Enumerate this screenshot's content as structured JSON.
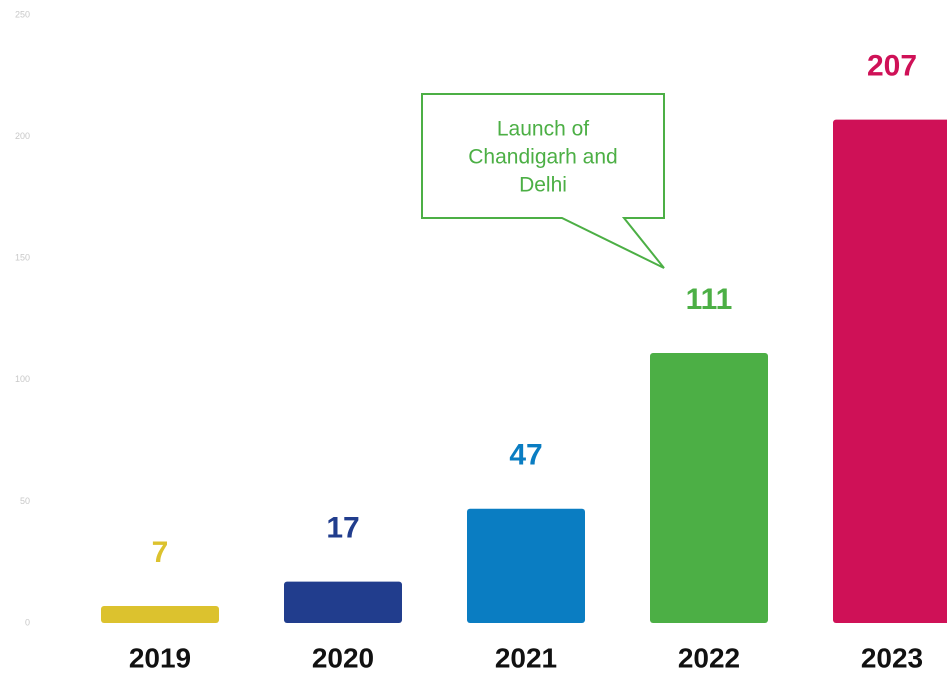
{
  "chart_data": {
    "type": "bar",
    "categories": [
      "2019",
      "2020",
      "2021",
      "2022",
      "2023"
    ],
    "values": [
      7,
      17,
      47,
      111,
      207
    ],
    "colors": [
      "#dcc22e",
      "#213d8d",
      "#0a7dc2",
      "#4caf45",
      "#cf1157"
    ],
    "ylim": [
      0,
      250
    ],
    "yticks": [
      0,
      50,
      100,
      150,
      200,
      250
    ],
    "annotation": [
      "Launch of",
      "Chandigarh and",
      "Delhi"
    ]
  }
}
